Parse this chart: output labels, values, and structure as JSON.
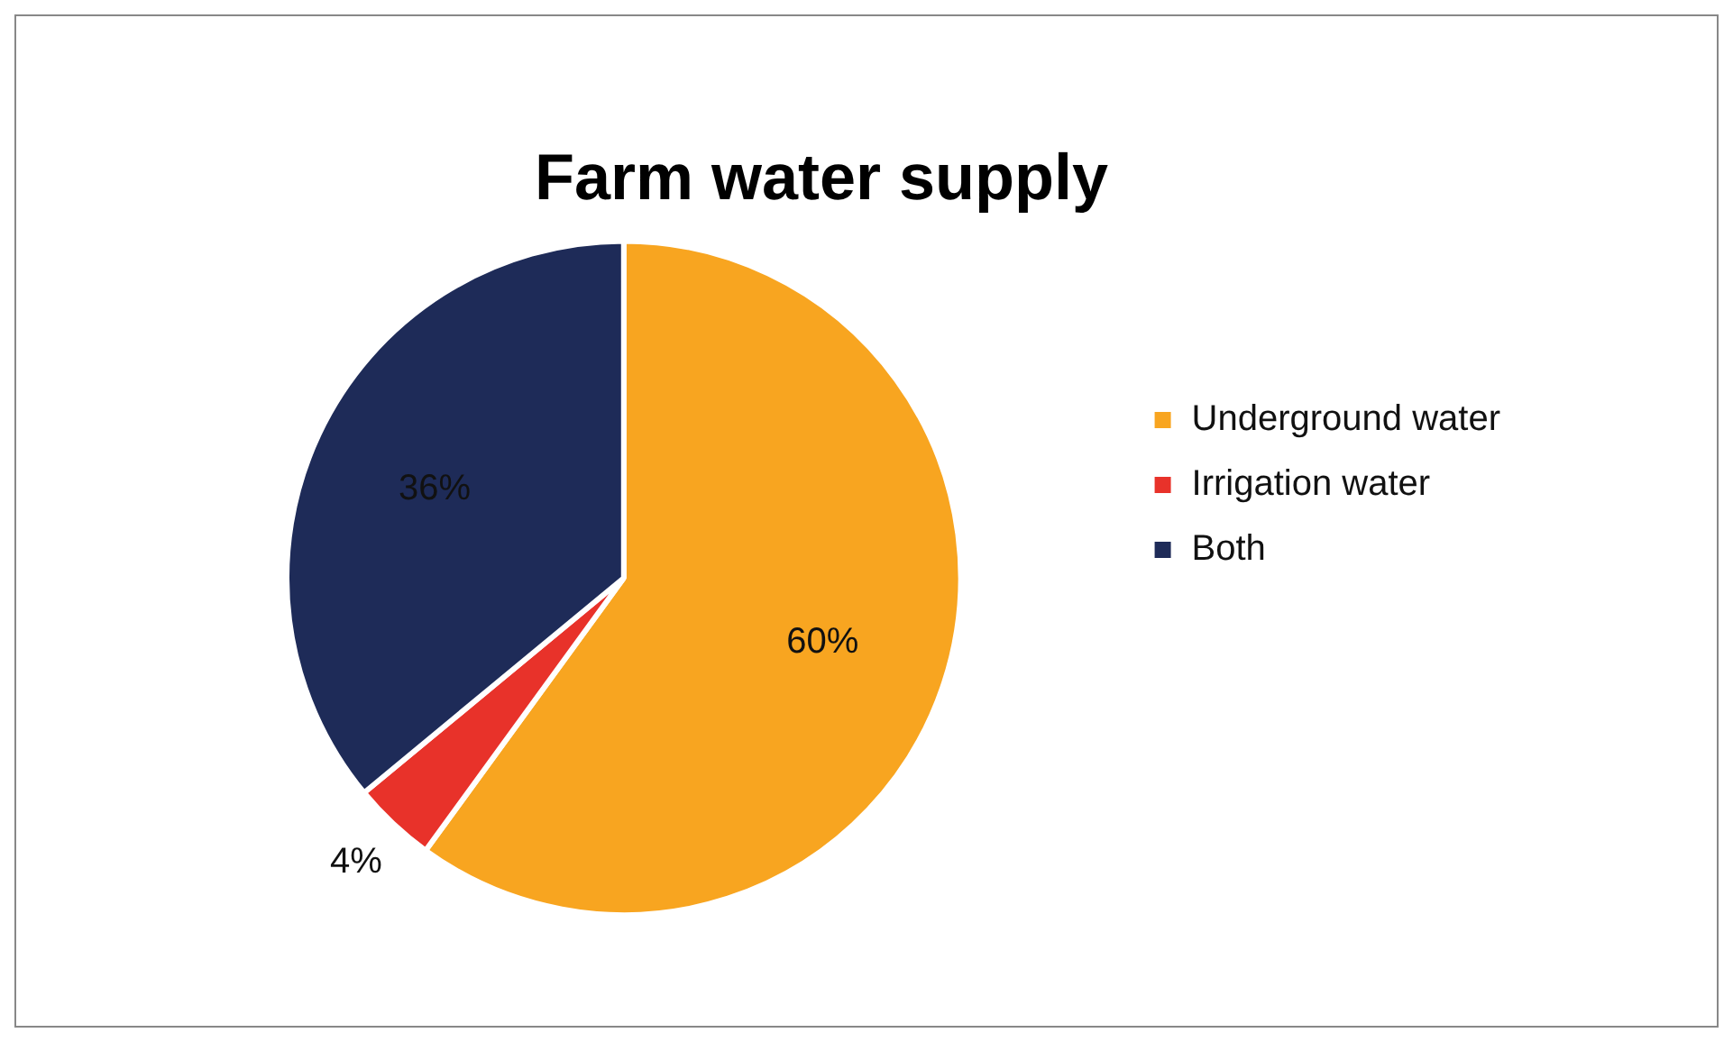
{
  "chart_data": {
    "type": "pie",
    "title": "Farm water supply",
    "categories": [
      "Underground water",
      "Irrigation water",
      "Both"
    ],
    "values": [
      60,
      4,
      36
    ],
    "colors": [
      "#f8a520",
      "#e8322a",
      "#1e2b58"
    ],
    "value_labels": [
      "60%",
      "4%",
      "36%"
    ],
    "legend": "right"
  }
}
